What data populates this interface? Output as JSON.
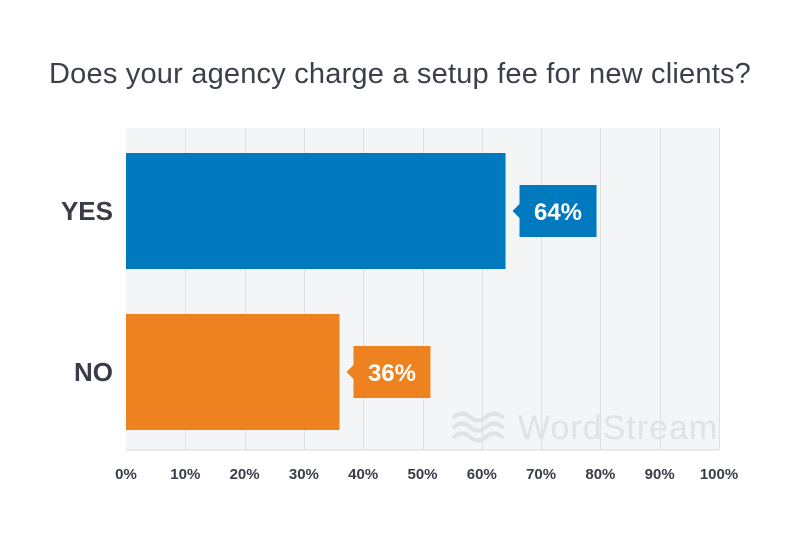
{
  "chart_data": {
    "type": "bar",
    "orientation": "horizontal",
    "title": "Does your agency charge a setup fee for new clients?",
    "categories": [
      "YES",
      "NO"
    ],
    "values": [
      64,
      36
    ],
    "data_labels": [
      "64%",
      "36%"
    ],
    "xlim": [
      0,
      100
    ],
    "x_ticks": [
      0,
      10,
      20,
      30,
      40,
      50,
      60,
      70,
      80,
      90,
      100
    ],
    "x_tick_labels": [
      "0%",
      "10%",
      "20%",
      "30%",
      "40%",
      "50%",
      "60%",
      "70%",
      "80%",
      "90%",
      "100%"
    ],
    "grid": true,
    "colors": [
      "#0079bf",
      "#ee8220"
    ],
    "watermark": "WordStream"
  }
}
